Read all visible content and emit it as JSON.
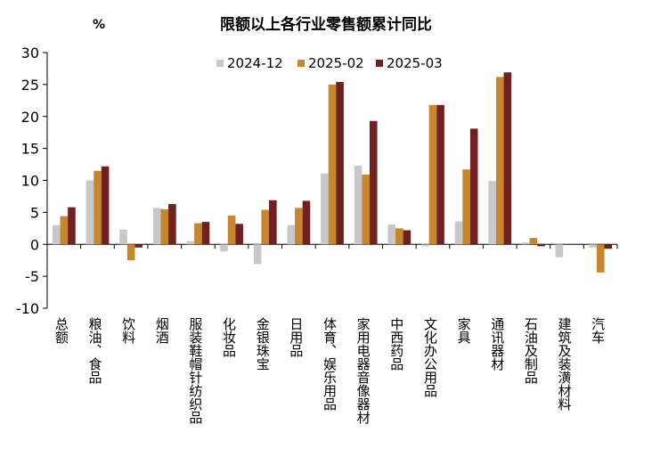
{
  "chart_data": {
    "type": "bar",
    "title": "限额以上各行业零售额累计同比",
    "ylabel": "%",
    "ylim": [
      -10,
      30
    ],
    "yticks": [
      -10,
      -5,
      0,
      5,
      10,
      15,
      20,
      25,
      30
    ],
    "grid": false,
    "legend_position": "top-center",
    "categories": [
      "总额",
      "粮油、食品",
      "饮料",
      "烟酒",
      "服装鞋帽针纺织品",
      "化妆品",
      "金银珠宝",
      "日用品",
      "体育、娱乐用品",
      "家用电器音像器材",
      "中西药品",
      "文化办公用品",
      "家具",
      "通讯器材",
      "石油及制品",
      "建筑及装潢材料",
      "汽车"
    ],
    "series": [
      {
        "name": "2024-12",
        "color": "#c8c8c8",
        "values": [
          3.0,
          10.0,
          2.3,
          5.7,
          0.5,
          -1.1,
          -3.1,
          3.0,
          11.1,
          12.3,
          3.1,
          -0.3,
          3.6,
          9.9,
          0.3,
          -2.0,
          -0.5
        ]
      },
      {
        "name": "2025-02",
        "color": "#c8862c",
        "values": [
          4.4,
          11.5,
          -2.5,
          5.5,
          3.3,
          4.5,
          5.4,
          5.7,
          25.0,
          10.9,
          2.5,
          21.8,
          11.7,
          26.2,
          1.0,
          0.0,
          -4.4
        ]
      },
      {
        "name": "2025-03",
        "color": "#70201f",
        "values": [
          5.8,
          12.2,
          -0.5,
          6.3,
          3.5,
          3.2,
          6.9,
          6.8,
          25.4,
          19.3,
          2.2,
          21.8,
          18.1,
          26.9,
          -0.3,
          0.0,
          -0.7
        ]
      }
    ]
  }
}
